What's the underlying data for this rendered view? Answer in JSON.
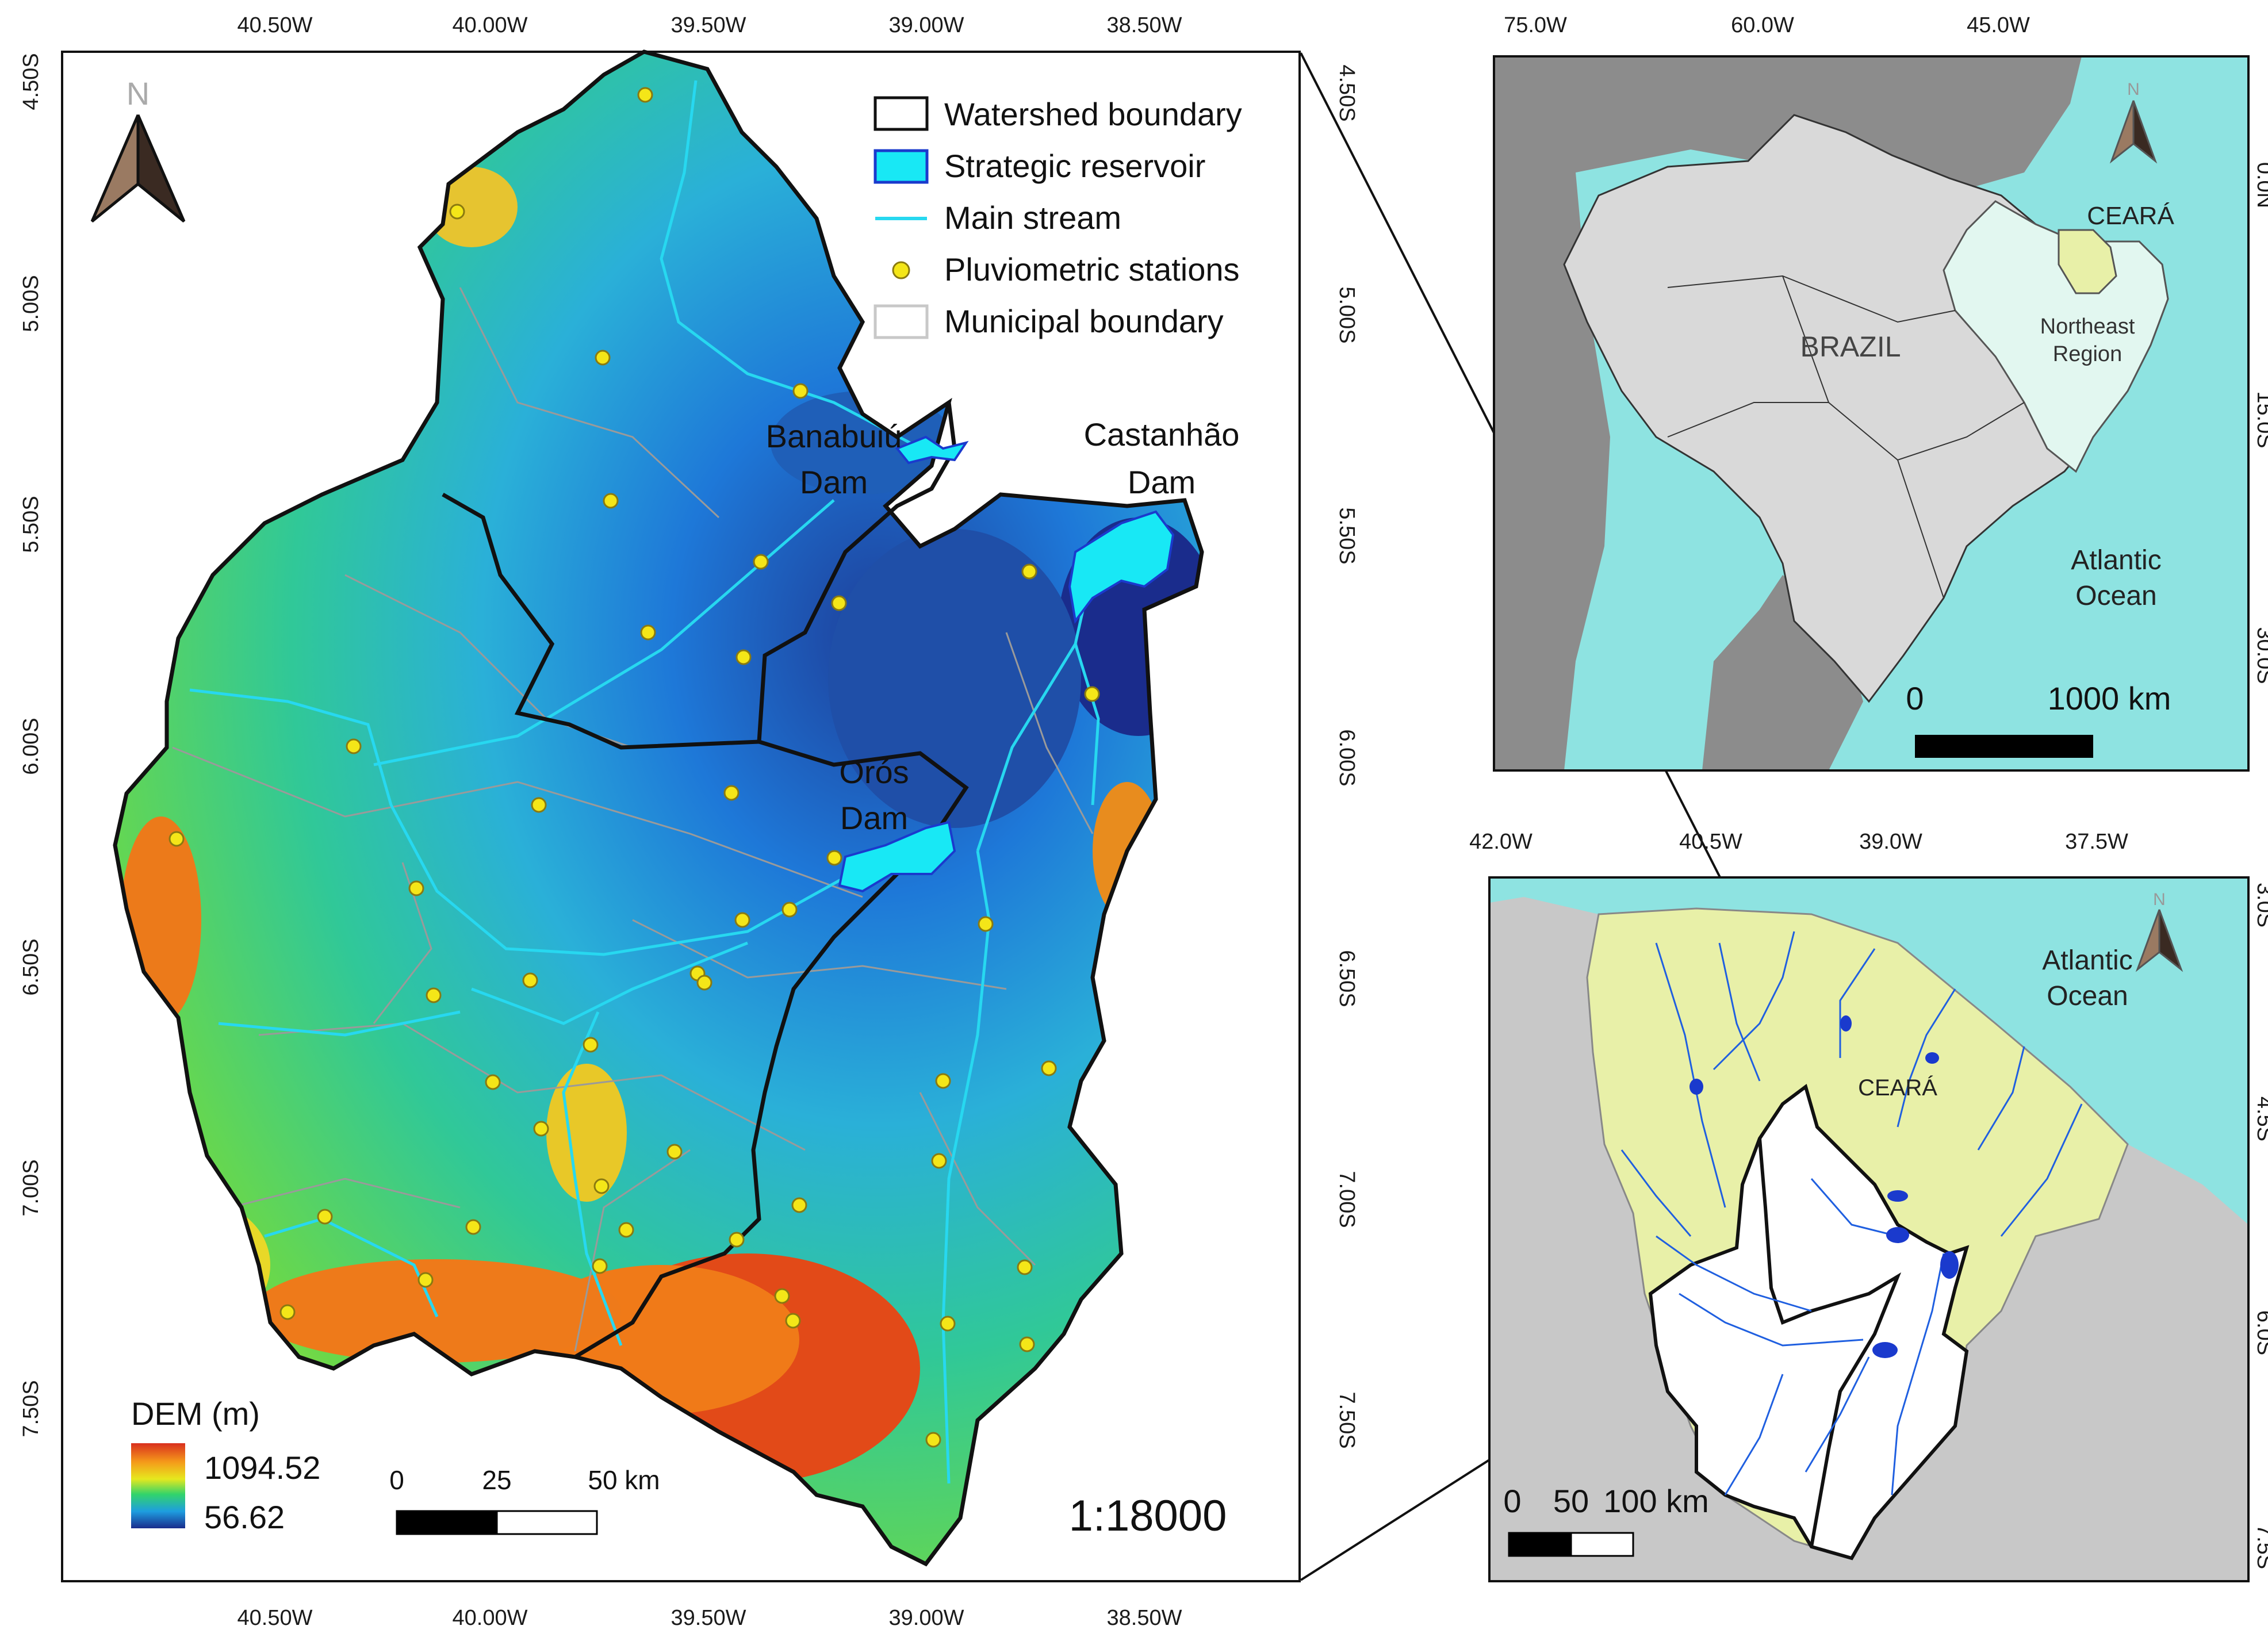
{
  "main_map": {
    "top_ticks": [
      "40.50W",
      "40.00W",
      "39.50W",
      "39.00W",
      "38.50W"
    ],
    "bottom_ticks": [
      "40.50W",
      "40.00W",
      "39.50W",
      "39.00W",
      "38.50W"
    ],
    "lat_ticks": [
      "4.50S",
      "5.00S",
      "5.50S",
      "6.00S",
      "6.50S",
      "7.00S",
      "7.50S"
    ],
    "legend": {
      "watershed": "Watershed boundary",
      "reservoir": "Strategic reservoir",
      "stream": "Main stream",
      "stations": "Pluviometric stations",
      "municipal": "Municipal boundary"
    },
    "dams": {
      "banabuiu_1": "Banabuiú",
      "banabuiu_2": "Dam",
      "castanhao_1": "Castanhão",
      "castanhao_2": "Dam",
      "oros_1": "Orós",
      "oros_2": "Dam"
    },
    "north": "N",
    "dem": {
      "title": "DEM (m)",
      "max": "1094.52",
      "min": "56.62"
    },
    "scale": {
      "t0": "0",
      "t1": "25",
      "t2": "50 km"
    },
    "ratio": "1:18000"
  },
  "brazil_map": {
    "top_ticks": [
      "75.0W",
      "60.0W",
      "45.0W"
    ],
    "lat_ticks": [
      "0.0N",
      "15.0S",
      "30.0S"
    ],
    "country": "BRAZIL",
    "state": "CEARÁ",
    "region_1": "Northeast",
    "region_2": "Region",
    "ocean_1": "Atlantic",
    "ocean_2": "Ocean",
    "north": "N",
    "scale": {
      "t0": "0",
      "t1": "1000 km"
    }
  },
  "ceara_map": {
    "top_ticks": [
      "42.0W",
      "40.5W",
      "39.0W",
      "37.5W"
    ],
    "lat_ticks": [
      "3.0S",
      "4.5S",
      "6.0S",
      "7.5S"
    ],
    "state": "CEARÁ",
    "ocean_1": "Atlantic",
    "ocean_2": "Ocean",
    "north": "N",
    "scale": {
      "t0": "0",
      "t1": "50",
      "t2": "100 km"
    }
  },
  "colors": {
    "ocean": "#8ee3e1",
    "land_dark": "#8c8c8c",
    "brazil": "#d9d9d9",
    "northeast": "#e2f7f0",
    "ceara": "#e8f0a8",
    "reservoir": "#18e8f5",
    "station": "#f4e618",
    "dem_high": "#e2371a",
    "dem_mid": "#3fd36b",
    "dem_low": "#1e3f8f"
  }
}
